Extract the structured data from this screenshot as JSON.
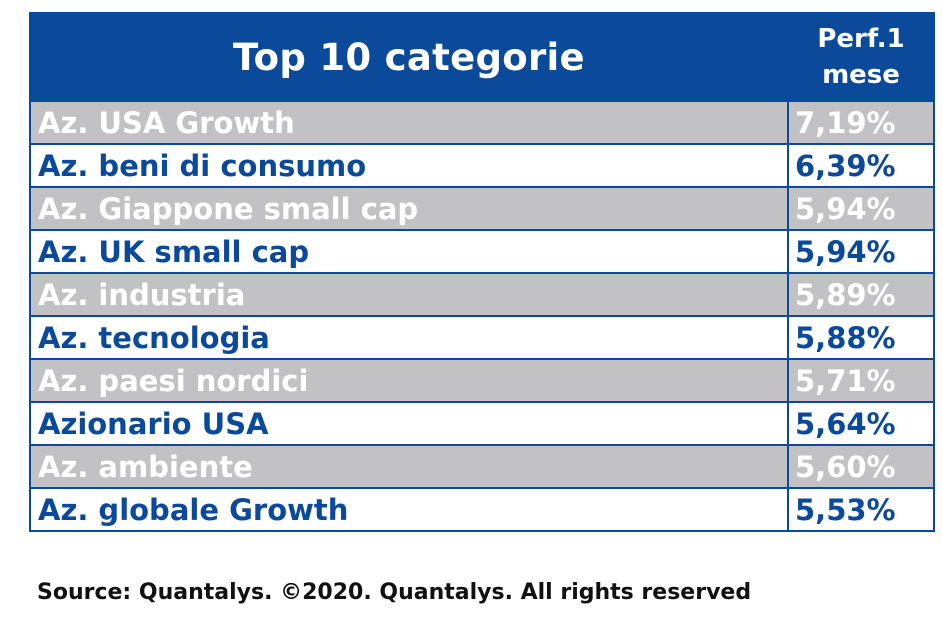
{
  "chart_data": {
    "type": "table",
    "title": "Top 10 categorie",
    "columns": [
      "Top 10 categorie",
      "Perf.1 mese"
    ],
    "header_value_line1": "Perf.1",
    "header_value_line2": "mese",
    "rows": [
      {
        "category": "Az. USA Growth",
        "perf": "7,19%"
      },
      {
        "category": "Az. beni di consumo",
        "perf": "6,39%"
      },
      {
        "category": "Az. Giappone small cap",
        "perf": "5,94%"
      },
      {
        "category": "Az. UK small cap",
        "perf": "5,94%"
      },
      {
        "category": "Az. industria",
        "perf": "5,89%"
      },
      {
        "category": "Az. tecnologia",
        "perf": "5,88%"
      },
      {
        "category": "Az. paesi nordici",
        "perf": "5,71%"
      },
      {
        "category": "Azionario USA",
        "perf": "5,64%"
      },
      {
        "category": "Az. ambiente",
        "perf": "5,60%"
      },
      {
        "category": "Az. globale Growth",
        "perf": "5,53%"
      }
    ],
    "values": [
      7.19,
      6.39,
      5.94,
      5.94,
      5.89,
      5.88,
      5.71,
      5.64,
      5.6,
      5.53
    ]
  },
  "source": "Source: Quantalys. ©2020. Quantalys. All rights reserved",
  "colors": {
    "header_bg": "#0b4a9b",
    "odd_row_bg": "#c2c2c4",
    "even_row_bg": "#ffffff",
    "even_row_text": "#0b4a9b",
    "odd_row_text": "#ffffff"
  }
}
